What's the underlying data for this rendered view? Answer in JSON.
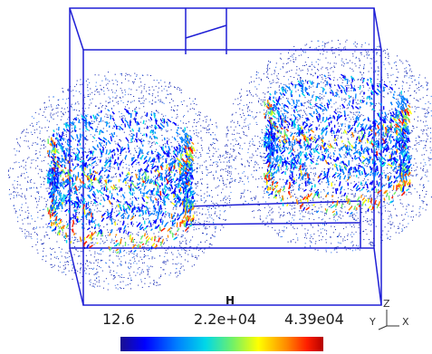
{
  "colorbar": {
    "title": "H",
    "min_label": "12.6",
    "mid_label": "2.2e+04",
    "max_label": "4.39e04",
    "colors": [
      "#1a0f8f",
      "#0000ff",
      "#0080ff",
      "#00d8e8",
      "#6ef06a",
      "#ffff00",
      "#ff8800",
      "#ff1e00",
      "#b40000"
    ]
  },
  "axes": {
    "z": "Z",
    "y": "Y",
    "x": "X"
  },
  "colors": {
    "wireframe": "#1f1fd6",
    "background": "#ffffff"
  }
}
